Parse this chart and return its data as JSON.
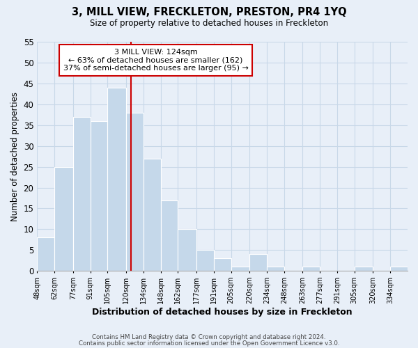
{
  "title": "3, MILL VIEW, FRECKLETON, PRESTON, PR4 1YQ",
  "subtitle": "Size of property relative to detached houses in Freckleton",
  "xlabel": "Distribution of detached houses by size in Freckleton",
  "ylabel": "Number of detached properties",
  "bar_edges": [
    48,
    62,
    77,
    91,
    105,
    120,
    134,
    148,
    162,
    177,
    191,
    205,
    220,
    234,
    248,
    263,
    277,
    291,
    305,
    320,
    334,
    348
  ],
  "bar_heights": [
    8,
    25,
    37,
    36,
    44,
    38,
    27,
    17,
    10,
    5,
    3,
    1,
    4,
    1,
    0,
    1,
    0,
    0,
    1,
    0,
    1
  ],
  "tick_labels": [
    "48sqm",
    "62sqm",
    "77sqm",
    "91sqm",
    "105sqm",
    "120sqm",
    "134sqm",
    "148sqm",
    "162sqm",
    "177sqm",
    "191sqm",
    "205sqm",
    "220sqm",
    "234sqm",
    "248sqm",
    "263sqm",
    "277sqm",
    "291sqm",
    "305sqm",
    "320sqm",
    "334sqm"
  ],
  "bar_color": "#c5d8ea",
  "bar_edge_color": "#ffffff",
  "vline_x": 124,
  "vline_color": "#cc0000",
  "ylim": [
    0,
    55
  ],
  "yticks": [
    0,
    5,
    10,
    15,
    20,
    25,
    30,
    35,
    40,
    45,
    50,
    55
  ],
  "annotation_title": "3 MILL VIEW: 124sqm",
  "annotation_line1": "← 63% of detached houses are smaller (162)",
  "annotation_line2": "37% of semi-detached houses are larger (95) →",
  "annotation_box_color": "#ffffff",
  "annotation_box_edgecolor": "#cc0000",
  "grid_color": "#c8d8e8",
  "bg_color": "#e8eff8",
  "footer1": "Contains HM Land Registry data © Crown copyright and database right 2024.",
  "footer2": "Contains public sector information licensed under the Open Government Licence v3.0."
}
